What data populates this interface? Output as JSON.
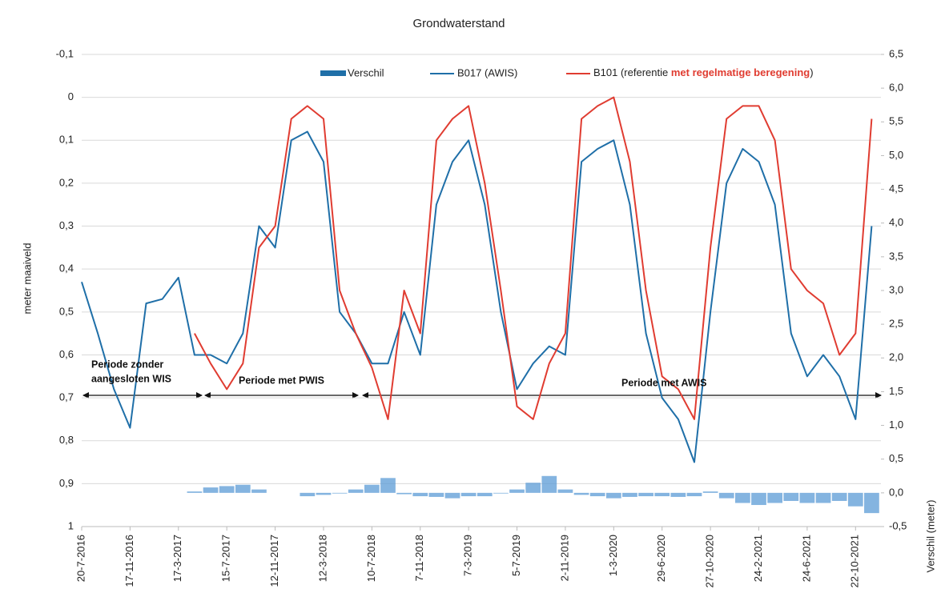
{
  "chart_data": {
    "type": "line",
    "title": "Grondwaterstand",
    "ylabel": "meter maaiveld",
    "y2label": "Verschil (meter)",
    "x": [
      "20-7-2016",
      "29-8-2016",
      "8-10-2016",
      "17-11-2016",
      "27-12-2016",
      "5-2-2017",
      "17-3-2017",
      "26-4-2017",
      "5-6-2017",
      "15-7-2017",
      "24-8-2017",
      "3-10-2017",
      "12-11-2017",
      "22-12-2017",
      "31-1-2018",
      "12-3-2018",
      "21-4-2018",
      "31-5-2018",
      "10-7-2018",
      "19-8-2018",
      "28-9-2018",
      "7-11-2018",
      "17-12-2018",
      "26-1-2019",
      "7-3-2019",
      "16-4-2019",
      "26-5-2019",
      "5-7-2019",
      "14-8-2019",
      "23-9-2019",
      "2-11-2019",
      "12-12-2019",
      "21-1-2020",
      "1-3-2020",
      "10-4-2020",
      "20-5-2020",
      "29-6-2020",
      "8-8-2020",
      "17-9-2020",
      "27-10-2020",
      "6-12-2020",
      "15-1-2021",
      "24-2-2021",
      "5-4-2021",
      "15-5-2021",
      "24-6-2021",
      "3-8-2021",
      "12-9-2021",
      "22-10-2021",
      "1-12-2021"
    ],
    "xlim": [
      "20-7-2016",
      "24-12-2021"
    ],
    "xticks": [
      "20-7-2016",
      "17-11-2016",
      "17-3-2017",
      "15-7-2017",
      "12-11-2017",
      "12-3-2018",
      "10-7-2018",
      "7-11-2018",
      "7-3-2019",
      "5-7-2019",
      "2-11-2019",
      "1-3-2020",
      "29-6-2020",
      "27-10-2020",
      "24-2-2021",
      "24-6-2021",
      "22-10-2021"
    ],
    "ylim": [
      -0.1,
      1
    ],
    "y_inverted": true,
    "yticks": [
      {
        "value": -0.1,
        "label": "-0,1"
      },
      0,
      {
        "value": 0.1,
        "label": "0,1"
      },
      {
        "value": 0.2,
        "label": "0,2"
      },
      {
        "value": 0.3,
        "label": "0,3"
      },
      {
        "value": 0.4,
        "label": "0,4"
      },
      {
        "value": 0.5,
        "label": "0,5"
      },
      {
        "value": 0.6,
        "label": "0,6"
      },
      {
        "value": 0.7,
        "label": "0,7"
      },
      {
        "value": 0.8,
        "label": "0,8"
      },
      {
        "value": 0.9,
        "label": "0,9"
      },
      1
    ],
    "y2lim": [
      -0.5,
      6.5
    ],
    "y2ticks": [
      {
        "value": 6.5,
        "label": "6,5"
      },
      {
        "value": 6,
        "label": "6,0"
      },
      {
        "value": 5.5,
        "label": "5,5"
      },
      {
        "value": 5,
        "label": "5,0"
      },
      {
        "value": 4.5,
        "label": "4,5"
      },
      {
        "value": 4,
        "label": "4,0"
      },
      {
        "value": 3.5,
        "label": "3,5"
      },
      {
        "value": 3,
        "label": "3,0"
      },
      {
        "value": 2.5,
        "label": "2,5"
      },
      {
        "value": 2,
        "label": "2,0"
      },
      {
        "value": 1.5,
        "label": "1,5"
      },
      {
        "value": 1,
        "label": "1,0"
      },
      {
        "value": 0.5,
        "label": "0,5"
      },
      {
        "value": 0,
        "label": "0,0"
      },
      {
        "value": -0.5,
        "label": "-0,5"
      }
    ],
    "grid": true,
    "series": [
      {
        "name": "Verschil",
        "type": "bar",
        "axis": "y2",
        "color": "#5b9bd5",
        "values": [
          null,
          null,
          null,
          null,
          null,
          null,
          null,
          0.02,
          0.08,
          0.1,
          0.12,
          0.05,
          null,
          null,
          -0.05,
          -0.03,
          0.0,
          0.05,
          0.12,
          0.22,
          -0.02,
          -0.05,
          -0.06,
          -0.08,
          -0.05,
          -0.05,
          0.0,
          0.05,
          0.15,
          0.25,
          0.05,
          -0.03,
          -0.05,
          -0.08,
          -0.06,
          -0.05,
          -0.05,
          -0.06,
          -0.05,
          0.02,
          -0.08,
          -0.15,
          -0.18,
          -0.15,
          -0.12,
          -0.15,
          -0.15,
          -0.12,
          -0.2,
          -0.3
        ]
      },
      {
        "name": "B017 (AWIS)",
        "color": "#1f6fa8",
        "values": [
          0.43,
          0.55,
          0.68,
          0.77,
          0.48,
          0.47,
          0.42,
          0.6,
          0.6,
          0.62,
          0.55,
          0.3,
          0.35,
          0.1,
          0.08,
          0.15,
          0.5,
          0.55,
          0.62,
          0.62,
          0.5,
          0.6,
          0.25,
          0.15,
          0.1,
          0.25,
          0.5,
          0.68,
          0.62,
          0.58,
          0.6,
          0.15,
          0.12,
          0.1,
          0.25,
          0.55,
          0.7,
          0.75,
          0.85,
          0.5,
          0.2,
          0.12,
          0.15,
          0.25,
          0.55,
          0.65,
          0.6,
          0.65,
          0.75,
          0.3
        ]
      },
      {
        "name": "B101 (referentie met regelmatige beregening)",
        "highlight": "met regelmatige beregening",
        "highlight_color": "#e03c31",
        "color": "#e03c31",
        "values": [
          null,
          null,
          null,
          null,
          null,
          null,
          null,
          0.55,
          0.62,
          0.68,
          0.62,
          0.35,
          0.3,
          0.05,
          0.02,
          0.05,
          0.45,
          0.55,
          0.63,
          0.75,
          0.45,
          0.55,
          0.1,
          0.05,
          0.02,
          0.2,
          0.45,
          0.72,
          0.75,
          0.62,
          0.55,
          0.05,
          0.02,
          0.0,
          0.15,
          0.45,
          0.65,
          0.68,
          0.75,
          0.35,
          0.05,
          0.02,
          0.02,
          0.1,
          0.4,
          0.45,
          0.48,
          0.6,
          0.55,
          0.05
        ]
      }
    ],
    "annotations": [
      [
        "Periode zonder",
        "aangesloten WIS"
      ],
      [
        "Periode met PWIS"
      ],
      [
        "Periode met AWIS"
      ]
    ]
  }
}
